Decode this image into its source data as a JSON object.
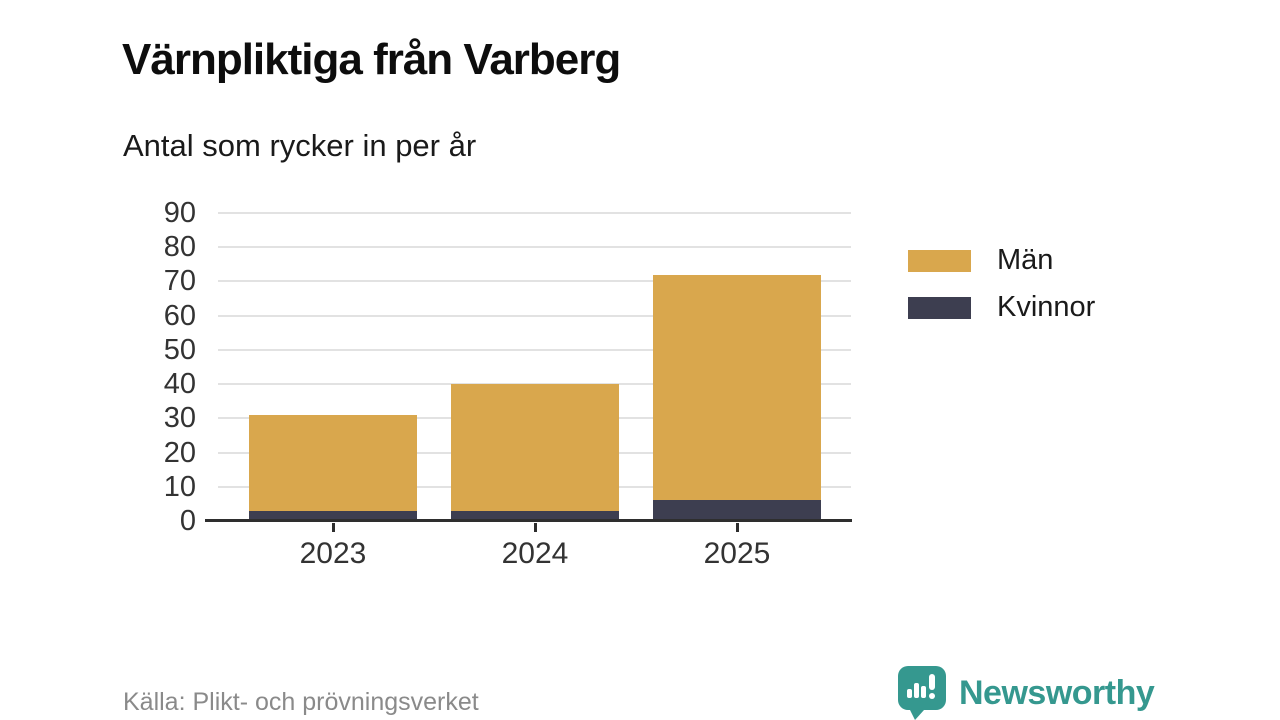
{
  "header": {
    "title": "Värnpliktiga från Varberg",
    "subtitle": "Antal som rycker in per år"
  },
  "chart_data": {
    "type": "bar",
    "stacked": true,
    "categories": [
      "2023",
      "2024",
      "2025"
    ],
    "series": [
      {
        "name": "Män",
        "color": "#D9A74D",
        "values": [
          28,
          37,
          66
        ]
      },
      {
        "name": "Kvinnor",
        "color": "#3D3E50",
        "values": [
          3,
          3,
          6
        ]
      }
    ],
    "totals": [
      31,
      40,
      72
    ],
    "ylim": [
      0,
      90
    ],
    "yticks": [
      0,
      10,
      20,
      30,
      40,
      50,
      60,
      70,
      80,
      90
    ],
    "grid": true,
    "legend_position": "right",
    "xlabel": "",
    "ylabel": ""
  },
  "footer": {
    "source": "Källa: Plikt- och prövningsverket",
    "brand": "Newsworthy"
  },
  "colors": {
    "men": "#D9A74D",
    "women": "#3D3E50",
    "brand_teal": "#35988F",
    "grid": "#E2E2E2",
    "axis": "#2E2E2E",
    "source_text": "#8A8A8A"
  }
}
